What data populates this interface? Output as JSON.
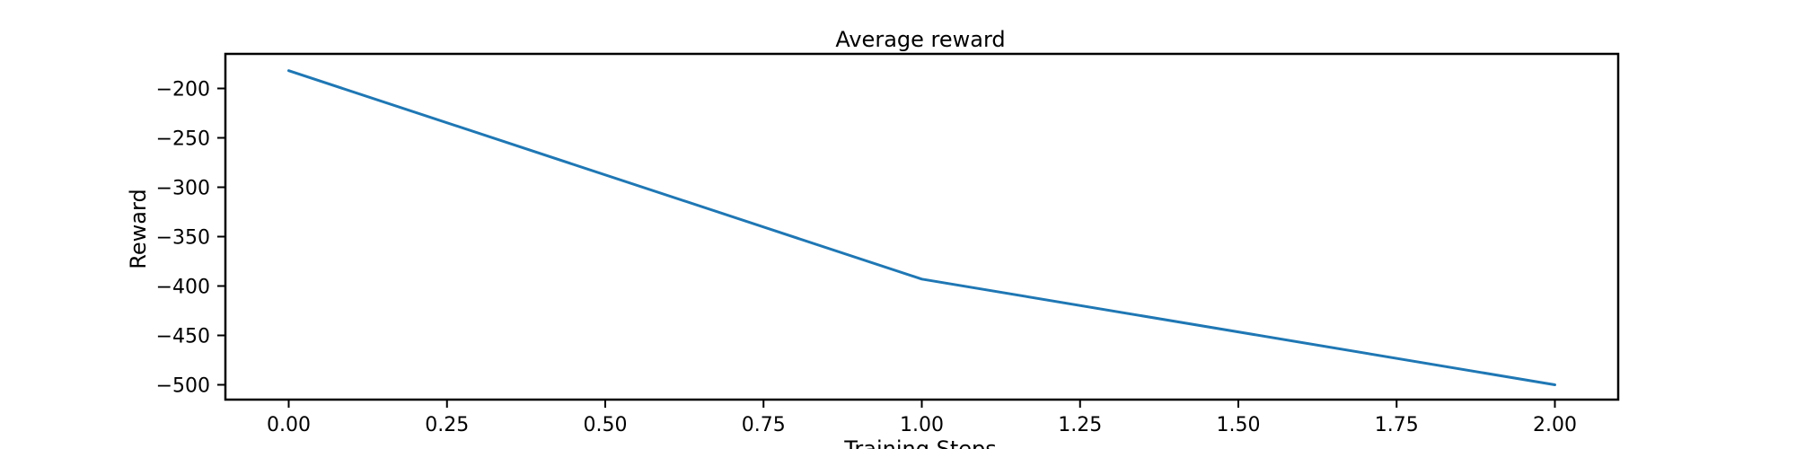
{
  "chart_data": {
    "type": "line",
    "title": "Average reward",
    "xlabel": "Training Steps",
    "ylabel": "Reward",
    "xlim": [
      -0.1,
      2.1
    ],
    "ylim": [
      -515,
      -165
    ],
    "x_ticks": [
      0.0,
      0.25,
      0.5,
      0.75,
      1.0,
      1.25,
      1.5,
      1.75,
      2.0
    ],
    "x_tick_labels": [
      "0.00",
      "0.25",
      "0.50",
      "0.75",
      "1.00",
      "1.25",
      "1.50",
      "1.75",
      "2.00"
    ],
    "y_ticks": [
      -200,
      -250,
      -300,
      -350,
      -400,
      -450,
      -500
    ],
    "y_tick_labels": [
      "−200",
      "−250",
      "−300",
      "−350",
      "−400",
      "−450",
      "−500"
    ],
    "grid": false,
    "series": [
      {
        "x": [
          0,
          1,
          2
        ],
        "values": [
          -182,
          -393,
          -500
        ],
        "color": "#1f77b4"
      }
    ]
  }
}
